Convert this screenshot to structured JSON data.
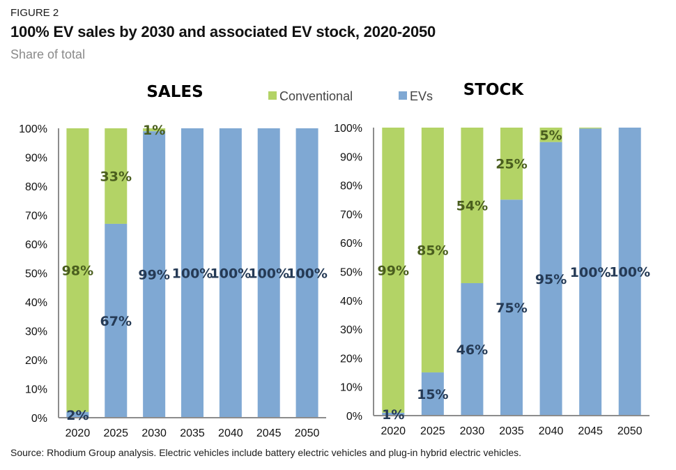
{
  "figure": {
    "label": "FIGURE 2",
    "title": "100% EV sales by 2030 and associated EV stock, 2020-2050",
    "subtitle": "Share of total",
    "source": "Source: Rhodium Group analysis. Electric vehicles include battery electric vehicles and plug-in hybrid electric vehicles."
  },
  "colors": {
    "conventional": "#b3d366",
    "evs": "#7fa8d3",
    "conventional_label": "#4a5e1e",
    "evs_label": "#253a55",
    "axis": "#8c8c8c"
  },
  "chart_data": [
    {
      "type": "bar",
      "stacked": true,
      "title": "SALES",
      "categories": [
        "2020",
        "2025",
        "2030",
        "2035",
        "2040",
        "2045",
        "2050"
      ],
      "series": [
        {
          "name": "EVs",
          "values": [
            2,
            67,
            99,
            100,
            100,
            100,
            100
          ],
          "labels": [
            "2%",
            "67%",
            "99%",
            "100%",
            "100%",
            "100%",
            "100%"
          ]
        },
        {
          "name": "Conventional",
          "values": [
            98,
            33,
            1,
            0,
            0,
            0,
            0
          ],
          "labels": [
            "98%",
            "33%",
            "1%",
            "",
            "",
            "",
            ""
          ]
        }
      ],
      "xlabel": "",
      "ylabel": "",
      "ylim": [
        0,
        100
      ],
      "yticks": [
        "0%",
        "10%",
        "20%",
        "30%",
        "40%",
        "50%",
        "60%",
        "70%",
        "80%",
        "90%",
        "100%"
      ],
      "grid": false
    },
    {
      "type": "bar",
      "stacked": true,
      "title": "STOCK",
      "categories": [
        "2020",
        "2025",
        "2030",
        "2035",
        "2040",
        "2045",
        "2050"
      ],
      "series": [
        {
          "name": "EVs",
          "values": [
            1,
            15,
            46,
            75,
            95,
            99.7,
            100
          ],
          "labels": [
            "1%",
            "15%",
            "46%",
            "75%",
            "95%",
            "100%",
            "100%"
          ]
        },
        {
          "name": "Conventional",
          "values": [
            99,
            85,
            54,
            25,
            5,
            0.3,
            0
          ],
          "labels": [
            "99%",
            "85%",
            "54%",
            "25%",
            "5%",
            "",
            ""
          ]
        }
      ],
      "xlabel": "",
      "ylabel": "",
      "ylim": [
        0,
        100
      ],
      "yticks": [
        "0%",
        "10%",
        "20%",
        "30%",
        "40%",
        "50%",
        "60%",
        "70%",
        "80%",
        "90%",
        "100%"
      ],
      "grid": false
    }
  ],
  "legend": {
    "position": "top-center",
    "items": [
      {
        "name": "Conventional",
        "color": "#b3d366"
      },
      {
        "name": "EVs",
        "color": "#7fa8d3"
      }
    ]
  }
}
